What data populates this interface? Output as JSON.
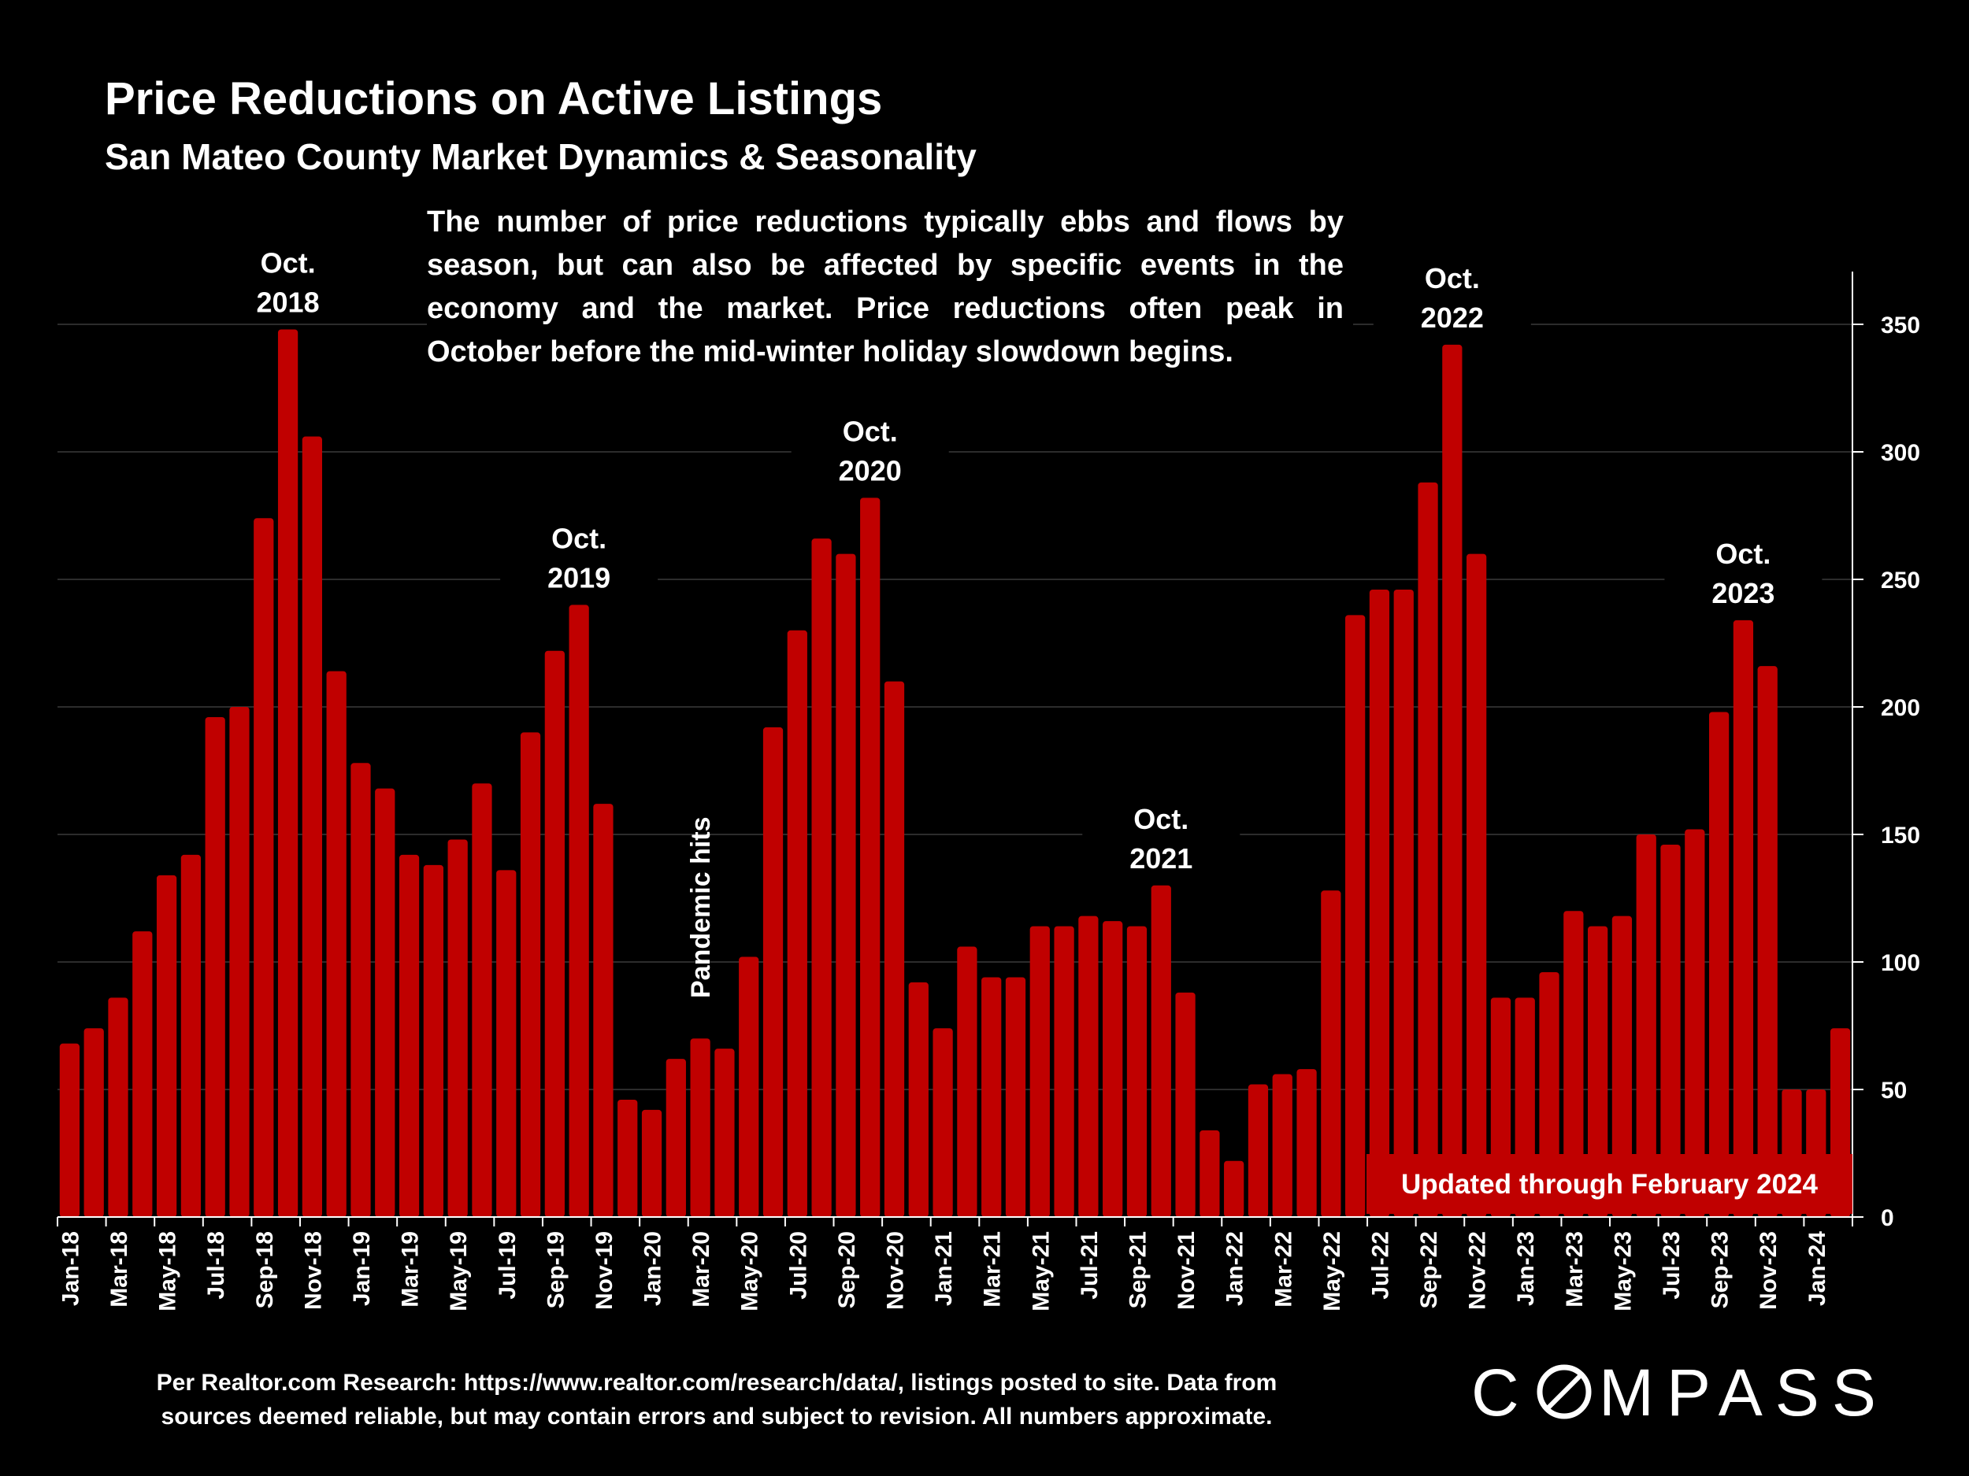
{
  "title": "Price Reductions on Active Listings",
  "subtitle": "San Mateo County Market Dynamics & Seasonality",
  "note": "The number of price reductions typically ebbs and flows by season, but can also be affected by specific events in the economy and the market. Price reductions often peak in October before the mid-winter holiday slowdown begins.",
  "footer_line1": "Per Realtor.com Research:  https://www.realtor.com/research/data/, listings posted to site. Data from",
  "footer_line2": "sources deemed reliable, but may contain errors and subject to revision. All numbers approximate.",
  "logo_text": "COMPASS",
  "colors": {
    "bar": "#c00000",
    "background": "#000000",
    "text": "#ffffff",
    "grid": "#3a3a3a"
  },
  "chart_data": {
    "type": "bar",
    "title": "Price Reductions on Active Listings",
    "subtitle": "San Mateo County Market Dynamics & Seasonality",
    "categories": [
      "Jan-18",
      "Feb-18",
      "Mar-18",
      "Apr-18",
      "May-18",
      "Jun-18",
      "Jul-18",
      "Aug-18",
      "Sep-18",
      "Oct-18",
      "Nov-18",
      "Dec-18",
      "Jan-19",
      "Feb-19",
      "Mar-19",
      "Apr-19",
      "May-19",
      "Jun-19",
      "Jul-19",
      "Aug-19",
      "Sep-19",
      "Oct-19",
      "Nov-19",
      "Dec-19",
      "Jan-20",
      "Feb-20",
      "Mar-20",
      "Apr-20",
      "May-20",
      "Jun-20",
      "Jul-20",
      "Aug-20",
      "Sep-20",
      "Oct-20",
      "Nov-20",
      "Dec-20",
      "Jan-21",
      "Feb-21",
      "Mar-21",
      "Apr-21",
      "May-21",
      "Jun-21",
      "Jul-21",
      "Aug-21",
      "Sep-21",
      "Oct-21",
      "Nov-21",
      "Dec-21",
      "Jan-22",
      "Feb-22",
      "Mar-22",
      "Apr-22",
      "May-22",
      "Jun-22",
      "Jul-22",
      "Aug-22",
      "Sep-22",
      "Oct-22",
      "Nov-22",
      "Dec-22",
      "Jan-23",
      "Feb-23",
      "Mar-23",
      "Apr-23",
      "May-23",
      "Jun-23",
      "Jul-23",
      "Aug-23",
      "Sep-23",
      "Oct-23",
      "Nov-23",
      "Dec-23",
      "Jan-24",
      "Feb-24"
    ],
    "tick_labels": [
      "Jan-18",
      "Mar-18",
      "May-18",
      "Jul-18",
      "Sep-18",
      "Nov-18",
      "Jan-19",
      "Mar-19",
      "May-19",
      "Jul-19",
      "Sep-19",
      "Nov-19",
      "Jan-20",
      "Mar-20",
      "May-20",
      "Jul-20",
      "Sep-20",
      "Nov-20",
      "Jan-21",
      "Mar-21",
      "May-21",
      "Jul-21",
      "Sep-21",
      "Nov-21",
      "Jan-22",
      "Mar-22",
      "May-22",
      "Jul-22",
      "Sep-22",
      "Nov-22",
      "Jan-23",
      "Mar-23",
      "May-23",
      "Jul-23",
      "Sep-23",
      "Nov-23",
      "Jan-24"
    ],
    "values": [
      68,
      74,
      86,
      112,
      134,
      142,
      196,
      200,
      274,
      348,
      306,
      214,
      178,
      168,
      142,
      138,
      148,
      170,
      136,
      190,
      222,
      240,
      162,
      46,
      42,
      62,
      70,
      66,
      102,
      192,
      230,
      266,
      260,
      282,
      210,
      92,
      74,
      106,
      94,
      94,
      114,
      114,
      118,
      116,
      114,
      130,
      88,
      34,
      22,
      52,
      56,
      58,
      128,
      236,
      246,
      246,
      288,
      342,
      260,
      86,
      86,
      96,
      120,
      114,
      118,
      150,
      146,
      152,
      198,
      234,
      216,
      50,
      50,
      74
    ],
    "ylim": [
      0,
      350
    ],
    "yticks": [
      0,
      50,
      100,
      150,
      200,
      250,
      300,
      350
    ],
    "y_axis_side": "right",
    "grid": true,
    "annotations": [
      {
        "index": 9,
        "line1": "Oct.",
        "line2": "2018"
      },
      {
        "index": 21,
        "line1": "Oct.",
        "line2": "2019"
      },
      {
        "index": 33,
        "line1": "Oct.",
        "line2": "2020"
      },
      {
        "index": 45,
        "line1": "Oct.",
        "line2": "2021"
      },
      {
        "index": 57,
        "line1": "Oct.",
        "line2": "2022"
      },
      {
        "index": 69,
        "line1": "Oct.",
        "line2": "2023"
      }
    ],
    "vertical_annotation": {
      "index": 26,
      "text": "Pandemic hits"
    },
    "badge": "Updated through February 2024"
  }
}
